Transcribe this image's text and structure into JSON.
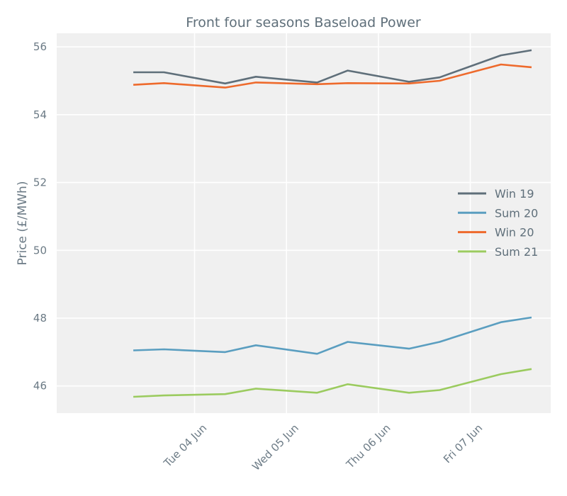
{
  "chart_data": {
    "type": "line",
    "title": "Front four seasons Baseload Power",
    "xlabel": "",
    "ylabel": "Price (£/MWh)",
    "x_ticks": [
      "Tue 04 Jun",
      "Wed 05 Jun",
      "Thu 06 Jun",
      "Fri 07 Jun"
    ],
    "x": [
      "2019-06-03 08:00",
      "2019-06-03 16:00",
      "2019-06-04 08:00",
      "2019-06-04 16:00",
      "2019-06-05 08:00",
      "2019-06-05 16:00",
      "2019-06-06 08:00",
      "2019-06-06 16:00",
      "2019-06-07 08:00",
      "2019-06-07 16:00"
    ],
    "y_ticks": [
      46,
      48,
      50,
      52,
      54,
      56
    ],
    "ylim": [
      45.2,
      56.4
    ],
    "grid": true,
    "legend_position": "right",
    "series": [
      {
        "name": "Win 19",
        "color": "#5f6f7a",
        "values": [
          55.25,
          55.25,
          54.92,
          55.12,
          54.95,
          55.3,
          54.97,
          55.1,
          55.75,
          55.9
        ]
      },
      {
        "name": "Sum 20",
        "color": "#5a9ec0",
        "values": [
          47.05,
          47.08,
          47.0,
          47.2,
          46.95,
          47.3,
          47.1,
          47.3,
          47.88,
          48.02
        ]
      },
      {
        "name": "Win 20",
        "color": "#ee6a2c",
        "values": [
          54.88,
          54.93,
          54.8,
          54.95,
          54.9,
          54.93,
          54.92,
          55.0,
          55.48,
          55.4
        ]
      },
      {
        "name": "Sum 21",
        "color": "#9bcb5f",
        "values": [
          45.68,
          45.72,
          45.76,
          45.92,
          45.8,
          46.05,
          45.8,
          45.88,
          46.35,
          46.5
        ]
      }
    ]
  }
}
